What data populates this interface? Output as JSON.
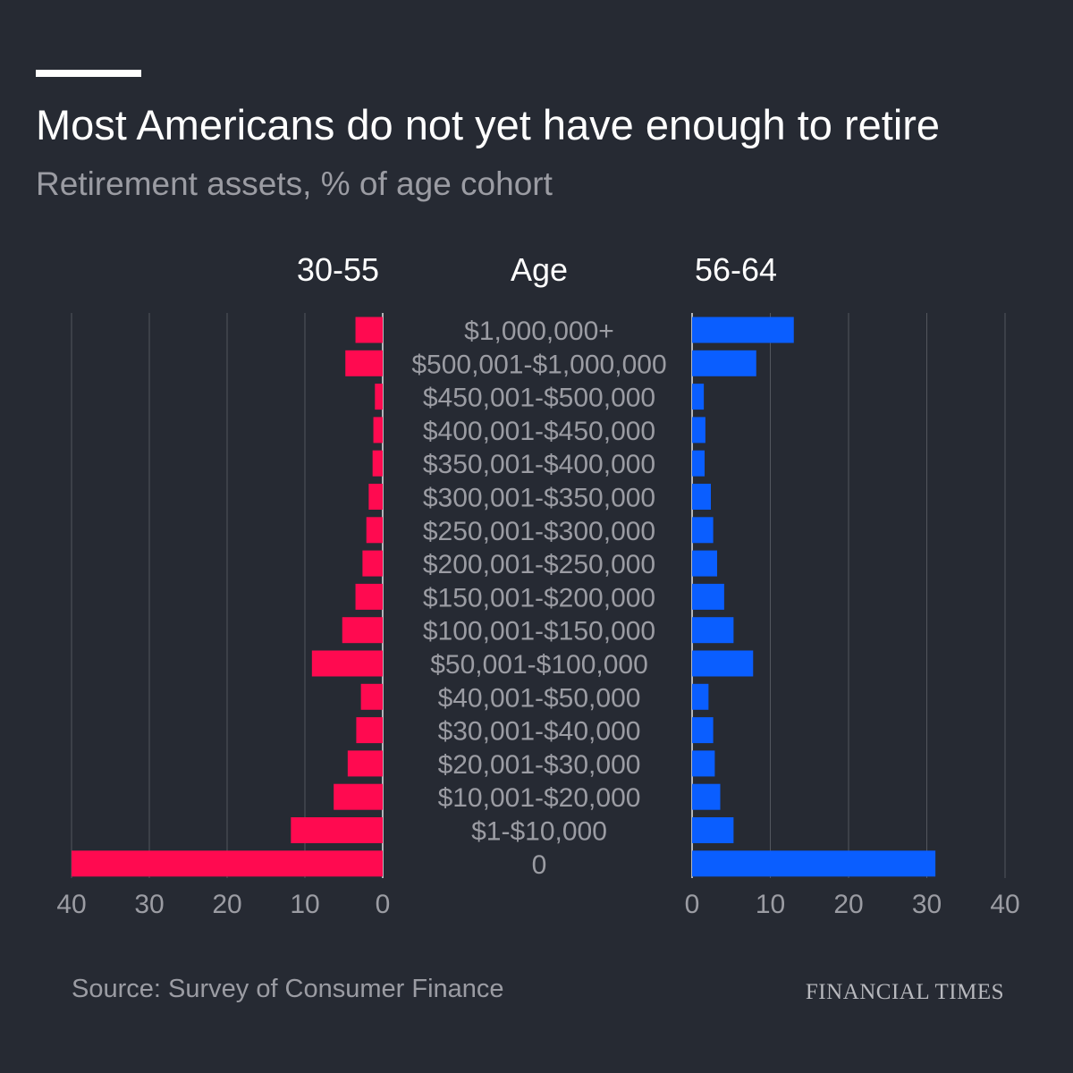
{
  "title": "Most Americans do not yet have enough to retire",
  "subtitle": "Retirement assets, % of age cohort",
  "source": "Source: Survey of Consumer Finance",
  "brand": "FINANCIAL TIMES",
  "colors": {
    "background": "#262a33",
    "left_series": "#ff0a50",
    "right_series": "#0a5eff",
    "gridline": "#53565e",
    "label_text": "#9b9ca3",
    "header_text": "#ffffff"
  },
  "chart_data": {
    "type": "bar",
    "orientation": "horizontal-butterfly",
    "center_label": "Age",
    "categories": [
      "$1,000,000+",
      "$500,001-$1,000,000",
      "$450,001-$500,000",
      "$400,001-$450,000",
      "$350,001-$400,000",
      "$300,001-$350,000",
      "$250,001-$300,000",
      "$200,001-$250,000",
      "$150,001-$200,000",
      "$100,001-$150,000",
      "$50,001-$100,000",
      "$40,001-$50,000",
      "$30,001-$40,000",
      "$20,001-$30,000",
      "$10,001-$20,000",
      "$1-$10,000",
      "0"
    ],
    "series": [
      {
        "name": "30-55",
        "side": "left",
        "values": [
          3.5,
          4.8,
          1.0,
          1.2,
          1.3,
          1.8,
          2.1,
          2.6,
          3.5,
          5.2,
          9.1,
          2.8,
          3.4,
          4.5,
          6.3,
          11.8,
          40.0
        ]
      },
      {
        "name": "56-64",
        "side": "right",
        "values": [
          13.0,
          8.2,
          1.5,
          1.7,
          1.6,
          2.4,
          2.7,
          3.2,
          4.1,
          5.3,
          7.8,
          2.1,
          2.7,
          2.9,
          3.6,
          5.3,
          31.1
        ]
      }
    ],
    "xlim": [
      0,
      40
    ],
    "xticks": [
      0,
      10,
      20,
      30,
      40
    ],
    "left_tick_labels": [
      "40",
      "30",
      "20",
      "10",
      "0"
    ],
    "right_tick_labels": [
      "0",
      "10",
      "20",
      "30",
      "40"
    ],
    "grid": true,
    "legend": "none"
  }
}
